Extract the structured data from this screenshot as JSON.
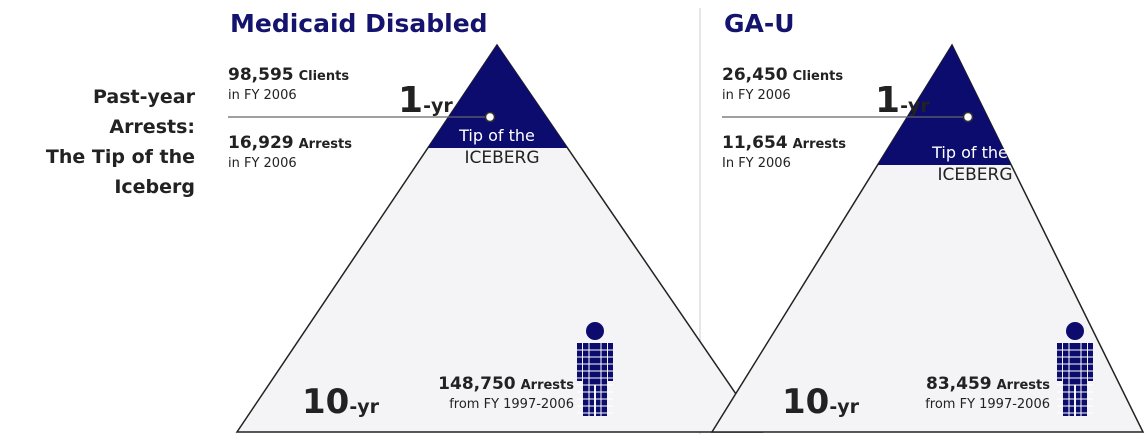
{
  "side_label": [
    "Past-year",
    "Arrests:",
    "The Tip of the",
    "Iceberg"
  ],
  "panels": [
    {
      "title": "Medicaid Disabled",
      "clients": {
        "number": "98,595",
        "label": "Clients",
        "period": "in FY 2006"
      },
      "one_year": {
        "number": "1",
        "unit": "-yr"
      },
      "arrests": {
        "number": "16,929",
        "label": "Arrests",
        "period": "in FY 2006"
      },
      "tip": [
        "Tip of the",
        "ICEBERG"
      ],
      "ten_year": {
        "number": "10",
        "unit": "-yr"
      },
      "ten_year_arrests": {
        "number": "148,750",
        "label": "Arrests",
        "period": "from FY 1997-2006"
      }
    },
    {
      "title": "GA-U",
      "clients": {
        "number": "26,450",
        "label": "Clients",
        "period": "in FY 2006"
      },
      "one_year": {
        "number": "1",
        "unit": "-yr"
      },
      "arrests": {
        "number": "11,654",
        "label": "Arrests",
        "period": "In FY 2006"
      },
      "tip": [
        "Tip of the",
        "ICEBERG"
      ],
      "ten_year": {
        "number": "10",
        "unit": "-yr"
      },
      "ten_year_arrests": {
        "number": "83,459",
        "label": "Arrests",
        "period": "from FY 1997-2006"
      }
    }
  ]
}
